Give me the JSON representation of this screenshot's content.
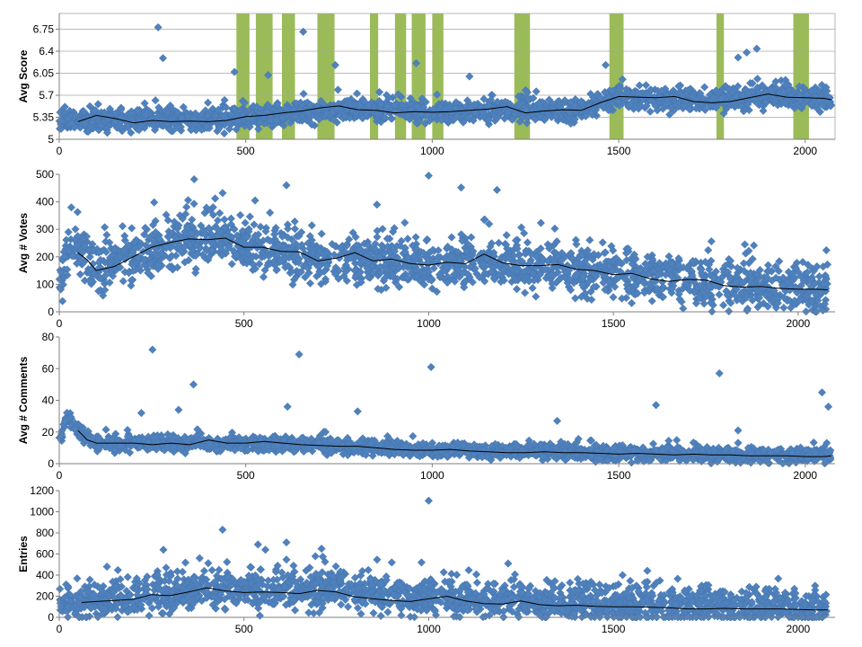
{
  "colors": {
    "points": "#4f81bd",
    "points_edge": "#3f6ea5",
    "trend": "#000000",
    "highlight": "#9bbb59",
    "grid": "#a6a6a6",
    "axis": "#7f7f7f"
  },
  "chart_data": [
    {
      "type": "scatter",
      "id": "score",
      "title": "",
      "xlabel": "",
      "ylabel": "Avg Score",
      "xlim": [
        0,
        2080
      ],
      "ylim": [
        5,
        7.0
      ],
      "x_ticks": [
        0,
        500,
        1000,
        1500,
        2000
      ],
      "y_ticks": [
        5,
        5.35,
        5.7,
        6.05,
        6.4,
        6.75
      ],
      "y_tick_labels": [
        "5",
        "5.35",
        "5.7",
        "6.05",
        "6.4",
        "6.75"
      ],
      "grid": true,
      "legend": "none",
      "highlight_bands": [
        [
          475,
          510
        ],
        [
          527,
          572
        ],
        [
          597,
          632
        ],
        [
          692,
          738
        ],
        [
          833,
          855
        ],
        [
          900,
          930
        ],
        [
          945,
          982
        ],
        [
          1000,
          1030
        ],
        [
          1220,
          1262
        ],
        [
          1475,
          1513
        ],
        [
          1762,
          1782
        ],
        [
          1968,
          2010
        ]
      ],
      "trend": {
        "x": [
          50,
          100,
          150,
          200,
          250,
          300,
          350,
          400,
          450,
          500,
          550,
          600,
          650,
          700,
          750,
          800,
          850,
          900,
          950,
          1000,
          1050,
          1100,
          1150,
          1200,
          1250,
          1300,
          1350,
          1400,
          1450,
          1500,
          1550,
          1600,
          1650,
          1700,
          1750,
          1800,
          1850,
          1900,
          1950,
          2000,
          2050,
          2070
        ],
        "y": [
          5.28,
          5.38,
          5.33,
          5.26,
          5.3,
          5.28,
          5.29,
          5.28,
          5.3,
          5.36,
          5.38,
          5.42,
          5.45,
          5.5,
          5.53,
          5.47,
          5.46,
          5.42,
          5.44,
          5.43,
          5.44,
          5.46,
          5.48,
          5.52,
          5.42,
          5.45,
          5.47,
          5.46,
          5.58,
          5.68,
          5.67,
          5.66,
          5.68,
          5.6,
          5.58,
          5.6,
          5.66,
          5.72,
          5.67,
          5.66,
          5.65,
          5.63
        ]
      },
      "base": {
        "x": [
          0,
          200,
          400,
          600,
          800,
          1000,
          1200,
          1400,
          1450,
          1500,
          1700,
          1900,
          2070
        ],
        "y": [
          5.3,
          5.3,
          5.3,
          5.4,
          5.48,
          5.44,
          5.47,
          5.45,
          5.6,
          5.67,
          5.6,
          5.68,
          5.63
        ]
      },
      "spread": 0.15,
      "outliers": [
        {
          "x": 265,
          "y": 6.78
        },
        {
          "x": 278,
          "y": 6.29
        },
        {
          "x": 654,
          "y": 6.71
        },
        {
          "x": 740,
          "y": 6.18
        },
        {
          "x": 957,
          "y": 6.21
        },
        {
          "x": 1465,
          "y": 6.18
        },
        {
          "x": 1843,
          "y": 6.38
        },
        {
          "x": 1870,
          "y": 6.44
        },
        {
          "x": 1820,
          "y": 6.3
        },
        {
          "x": 470,
          "y": 6.07
        },
        {
          "x": 560,
          "y": 6.02
        },
        {
          "x": 1100,
          "y": 6.0
        }
      ]
    },
    {
      "type": "scatter",
      "id": "votes",
      "title": "",
      "xlabel": "",
      "ylabel": "Avg # Votes",
      "xlim": [
        0,
        2100
      ],
      "ylim": [
        0,
        500
      ],
      "x_ticks": [
        0,
        500,
        1000,
        1500,
        2000
      ],
      "y_ticks": [
        0,
        100,
        200,
        300,
        400,
        500
      ],
      "y_tick_labels": [
        "0",
        "100",
        "200",
        "300",
        "400",
        "500"
      ],
      "grid": false,
      "legend": "none",
      "trend": {
        "x": [
          50,
          75,
          100,
          150,
          200,
          250,
          300,
          350,
          400,
          450,
          500,
          550,
          600,
          650,
          700,
          750,
          800,
          850,
          900,
          950,
          1000,
          1050,
          1100,
          1150,
          1200,
          1250,
          1300,
          1350,
          1400,
          1450,
          1500,
          1550,
          1600,
          1650,
          1700,
          1750,
          1800,
          1850,
          1900,
          1950,
          2000,
          2050,
          2080
        ],
        "y": [
          215,
          190,
          150,
          165,
          200,
          235,
          252,
          265,
          262,
          268,
          235,
          235,
          220,
          218,
          185,
          195,
          215,
          185,
          192,
          175,
          170,
          180,
          175,
          210,
          178,
          168,
          168,
          172,
          155,
          150,
          135,
          140,
          120,
          110,
          118,
          115,
          95,
          90,
          92,
          85,
          82,
          82,
          80
        ]
      },
      "base": {
        "x": [
          0,
          30,
          60,
          100,
          200,
          300,
          450,
          550,
          700,
          900,
          1100,
          1300,
          1450,
          1600,
          1800,
          2080
        ],
        "y": [
          100,
          250,
          210,
          150,
          205,
          250,
          262,
          232,
          190,
          180,
          178,
          168,
          150,
          125,
          95,
          82
        ]
      },
      "spread": 75,
      "outliers": [
        {
          "x": 365,
          "y": 482
        },
        {
          "x": 1000,
          "y": 495
        },
        {
          "x": 1088,
          "y": 452
        },
        {
          "x": 1185,
          "y": 443
        },
        {
          "x": 615,
          "y": 460
        },
        {
          "x": 257,
          "y": 398
        },
        {
          "x": 422,
          "y": 412
        },
        {
          "x": 442,
          "y": 432
        },
        {
          "x": 530,
          "y": 405
        },
        {
          "x": 860,
          "y": 390
        },
        {
          "x": 1150,
          "y": 335
        },
        {
          "x": 1540,
          "y": 230
        },
        {
          "x": 1715,
          "y": 185
        },
        {
          "x": 1853,
          "y": 176
        },
        {
          "x": 2000,
          "y": 145
        }
      ]
    },
    {
      "type": "scatter",
      "id": "comments",
      "title": "",
      "xlabel": "",
      "ylabel": "Avg # Comments",
      "xlim": [
        0,
        2080
      ],
      "ylim": [
        0,
        80
      ],
      "x_ticks": [
        0,
        500,
        1000,
        1500,
        2000
      ],
      "y_ticks": [
        0,
        20,
        40,
        60,
        80
      ],
      "y_tick_labels": [
        "0",
        "20",
        "40",
        "60",
        "80"
      ],
      "grid": false,
      "legend": "none",
      "trend": {
        "x": [
          50,
          75,
          100,
          150,
          200,
          250,
          300,
          350,
          400,
          450,
          500,
          550,
          600,
          650,
          700,
          750,
          800,
          850,
          900,
          950,
          1000,
          1050,
          1100,
          1150,
          1200,
          1250,
          1300,
          1350,
          1400,
          1450,
          1500,
          1550,
          1600,
          1650,
          1700,
          1750,
          1800,
          1850,
          1900,
          1950,
          2000,
          2050,
          2070
        ],
        "y": [
          21,
          15,
          13,
          13,
          13,
          12,
          13,
          12,
          15,
          13,
          13,
          14,
          13,
          12,
          11.5,
          11,
          11,
          10,
          9,
          8.5,
          8.5,
          9,
          8,
          7.5,
          7,
          7,
          7.5,
          7,
          7,
          6.5,
          6,
          6.5,
          6,
          5.5,
          6,
          5.5,
          5.5,
          5,
          5,
          5,
          4.5,
          4.5,
          5
        ]
      },
      "base": {
        "x": [
          0,
          20,
          50,
          100,
          400,
          700,
          1000,
          1400,
          1800,
          2070
        ],
        "y": [
          14,
          30,
          20,
          13,
          13,
          11.5,
          8.5,
          7,
          5.5,
          5
        ]
      },
      "spread": 4,
      "outliers": [
        {
          "x": 250,
          "y": 72
        },
        {
          "x": 643,
          "y": 69
        },
        {
          "x": 997,
          "y": 61
        },
        {
          "x": 1770,
          "y": 57
        },
        {
          "x": 360,
          "y": 50
        },
        {
          "x": 2045,
          "y": 45
        },
        {
          "x": 2062,
          "y": 36
        },
        {
          "x": 612,
          "y": 36
        },
        {
          "x": 1600,
          "y": 37
        },
        {
          "x": 220,
          "y": 32
        },
        {
          "x": 320,
          "y": 34
        },
        {
          "x": 800,
          "y": 33
        },
        {
          "x": 1335,
          "y": 27
        },
        {
          "x": 1820,
          "y": 21
        }
      ]
    },
    {
      "type": "scatter",
      "id": "entries",
      "title": "",
      "xlabel": "",
      "ylabel": "Entries",
      "xlim": [
        0,
        2100
      ],
      "ylim": [
        0,
        1200
      ],
      "x_ticks": [
        0,
        500,
        1000,
        1500,
        2000
      ],
      "y_ticks": [
        0,
        200,
        400,
        600,
        800,
        1000,
        1200
      ],
      "y_tick_labels": [
        "0",
        "200",
        "400",
        "600",
        "800",
        "1000",
        "1200"
      ],
      "grid": false,
      "legend": "none",
      "trend": {
        "x": [
          60,
          100,
          150,
          200,
          250,
          300,
          350,
          400,
          450,
          500,
          550,
          600,
          650,
          700,
          750,
          800,
          850,
          900,
          950,
          1000,
          1050,
          1100,
          1150,
          1200,
          1250,
          1300,
          1350,
          1400,
          1450,
          1500,
          1550,
          1600,
          1650,
          1700,
          1750,
          1800,
          1850,
          1900,
          1950,
          2000,
          2050,
          2080
        ],
        "y": [
          140,
          150,
          160,
          170,
          215,
          205,
          240,
          280,
          250,
          235,
          240,
          235,
          225,
          255,
          240,
          195,
          175,
          160,
          150,
          175,
          200,
          155,
          130,
          125,
          155,
          120,
          110,
          115,
          105,
          100,
          100,
          95,
          90,
          80,
          80,
          85,
          80,
          80,
          80,
          75,
          70,
          70
        ]
      },
      "base": {
        "x": [
          0,
          40,
          100,
          200,
          400,
          600,
          750,
          900,
          1100,
          1300,
          1500,
          1700,
          2080
        ],
        "y": [
          80,
          140,
          150,
          190,
          270,
          250,
          260,
          210,
          180,
          140,
          130,
          110,
          90
        ]
      },
      "spread": 150,
      "outliers": [
        {
          "x": 1000,
          "y": 1105
        },
        {
          "x": 442,
          "y": 830
        },
        {
          "x": 538,
          "y": 690
        },
        {
          "x": 615,
          "y": 710
        },
        {
          "x": 282,
          "y": 640
        },
        {
          "x": 710,
          "y": 650
        },
        {
          "x": 558,
          "y": 640
        },
        {
          "x": 1215,
          "y": 510
        },
        {
          "x": 1525,
          "y": 400
        },
        {
          "x": 1990,
          "y": 270
        },
        {
          "x": 900,
          "y": 520
        },
        {
          "x": 380,
          "y": 560
        }
      ]
    }
  ]
}
